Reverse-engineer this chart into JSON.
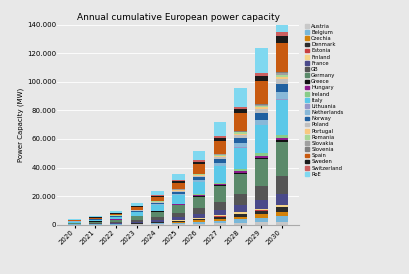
{
  "title": "Annual cumulative European power capacity",
  "ylabel": "Power Capacity (MW)",
  "years": [
    2020,
    2021,
    2022,
    2023,
    2024,
    2025,
    2026,
    2027,
    2028,
    2029,
    2030
  ],
  "countries": [
    "Austria",
    "Belgium",
    "Czechia",
    "Denmark",
    "Estonia",
    "Finland",
    "France",
    "GB",
    "Germany",
    "Greece",
    "Hungary",
    "Ireland",
    "Italy",
    "Lithuania",
    "Netherlands",
    "Norway",
    "Poland",
    "Portugal",
    "Romania",
    "Slovakia",
    "Slovenia",
    "Spain",
    "Sweden",
    "Switzerland",
    "RoE"
  ],
  "colors": [
    "#c8c8c8",
    "#7ab8d9",
    "#d4820a",
    "#2b2b2b",
    "#c94040",
    "#f5d58a",
    "#4a4a8a",
    "#555555",
    "#5b8a6a",
    "#111111",
    "#8b1a8b",
    "#88cc88",
    "#5bc8e8",
    "#9898c8",
    "#88b8d8",
    "#2060a0",
    "#c0c0c0",
    "#f8c880",
    "#a8d898",
    "#a0a0a0",
    "#808080",
    "#c85a10",
    "#1a1a1a",
    "#cc6060",
    "#80d8f0"
  ],
  "data": {
    "Austria": [
      50,
      80,
      120,
      200,
      350,
      500,
      700,
      1000,
      1300,
      1700,
      2100
    ],
    "Belgium": [
      100,
      150,
      250,
      400,
      700,
      1000,
      1400,
      1900,
      2500,
      3200,
      4000
    ],
    "Czechia": [
      30,
      50,
      80,
      150,
      300,
      550,
      900,
      1300,
      1800,
      2400,
      3100
    ],
    "Denmark": [
      60,
      100,
      170,
      300,
      500,
      750,
      1050,
      1400,
      1800,
      2300,
      2900
    ],
    "Estonia": [
      10,
      15,
      25,
      50,
      80,
      120,
      170,
      230,
      300,
      380,
      470
    ],
    "Finland": [
      30,
      50,
      80,
      130,
      210,
      320,
      460,
      630,
      830,
      1070,
      1340
    ],
    "France": [
      200,
      320,
      500,
      800,
      1250,
      1850,
      2700,
      3700,
      4900,
      6300,
      7900
    ],
    "GB": [
      300,
      500,
      800,
      1300,
      2000,
      2950,
      4200,
      5800,
      7700,
      9900,
      12400
    ],
    "Germany": [
      600,
      950,
      1500,
      2400,
      3700,
      5500,
      8000,
      11000,
      14500,
      18500,
      23500
    ],
    "Greece": [
      20,
      35,
      60,
      100,
      170,
      270,
      400,
      570,
      770,
      1010,
      1290
    ],
    "Hungary": [
      25,
      40,
      70,
      120,
      200,
      320,
      470,
      660,
      880,
      1140,
      1440
    ],
    "Ireland": [
      50,
      80,
      140,
      230,
      370,
      560,
      810,
      1120,
      1490,
      1930,
      2430
    ],
    "Italy": [
      700,
      1050,
      1600,
      2500,
      3900,
      5800,
      8300,
      11500,
      15200,
      19600,
      24700
    ],
    "Lithuania": [
      15,
      22,
      35,
      60,
      100,
      155,
      225,
      310,
      415,
      535,
      670
    ],
    "Netherlands": [
      100,
      160,
      260,
      420,
      660,
      990,
      1420,
      1960,
      2620,
      3400,
      4310
    ],
    "Norway": [
      150,
      230,
      370,
      580,
      900,
      1330,
      1910,
      2640,
      3520,
      4560,
      5760
    ],
    "Poland": [
      80,
      120,
      200,
      330,
      520,
      790,
      1130,
      1560,
      2090,
      2710,
      3440
    ],
    "Portugal": [
      40,
      65,
      105,
      170,
      275,
      415,
      605,
      845,
      1135,
      1475,
      1875
    ],
    "Romania": [
      25,
      40,
      70,
      120,
      200,
      310,
      460,
      650,
      880,
      1150,
      1470
    ],
    "Slovakia": [
      18,
      28,
      48,
      80,
      135,
      210,
      310,
      435,
      585,
      760,
      965
    ],
    "Slovenia": [
      12,
      18,
      32,
      55,
      88,
      136,
      200,
      280,
      378,
      494,
      630
    ],
    "Spain": [
      500,
      780,
      1200,
      1900,
      3000,
      4500,
      6600,
      9200,
      12300,
      15900,
      20200
    ],
    "Sweden": [
      120,
      190,
      310,
      490,
      770,
      1140,
      1650,
      2290,
      3070,
      4000,
      5080
    ],
    "Switzerland": [
      60,
      95,
      155,
      250,
      400,
      600,
      870,
      1210,
      1620,
      2100,
      2680
    ],
    "RoE": [
      400,
      650,
      1100,
      1850,
      3000,
      4600,
      6800,
      9600,
      13000,
      17000,
      22000
    ]
  },
  "ylim": [
    0,
    140000
  ],
  "yticks": [
    0,
    20000,
    40000,
    60000,
    80000,
    100000,
    120000,
    140000
  ],
  "ytick_labels": [
    "0",
    "20.000",
    "40.000",
    "60.000",
    "80.000",
    "100.000",
    "120.000",
    "140.000"
  ],
  "bg_color": "#e8e8e8",
  "plot_bg_color": "#e8e8e8"
}
